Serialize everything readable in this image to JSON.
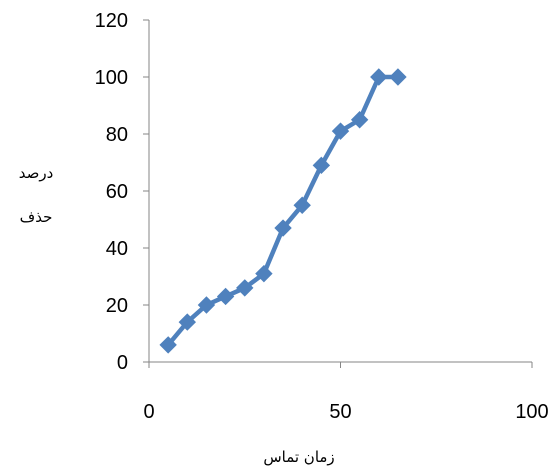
{
  "chart_data": {
    "type": "line",
    "title": "",
    "xlabel": "زمان تماس",
    "ylabel_lines": [
      "درصد",
      "حذف"
    ],
    "xlim": [
      0,
      100
    ],
    "ylim": [
      0,
      120
    ],
    "x_ticks": [
      0,
      50,
      100
    ],
    "y_ticks": [
      0,
      20,
      40,
      60,
      80,
      100,
      120
    ],
    "grid": false,
    "legend": "none",
    "marker": "diamond",
    "series": [
      {
        "color": "#4f81bd",
        "points": [
          {
            "x": 5,
            "y": 6
          },
          {
            "x": 10,
            "y": 14
          },
          {
            "x": 15,
            "y": 20
          },
          {
            "x": 20,
            "y": 23
          },
          {
            "x": 25,
            "y": 26
          },
          {
            "x": 30,
            "y": 31
          },
          {
            "x": 35,
            "y": 47
          },
          {
            "x": 40,
            "y": 55
          },
          {
            "x": 45,
            "y": 69
          },
          {
            "x": 50,
            "y": 81
          },
          {
            "x": 55,
            "y": 85
          },
          {
            "x": 60,
            "y": 100
          },
          {
            "x": 65,
            "y": 100
          }
        ]
      }
    ]
  }
}
